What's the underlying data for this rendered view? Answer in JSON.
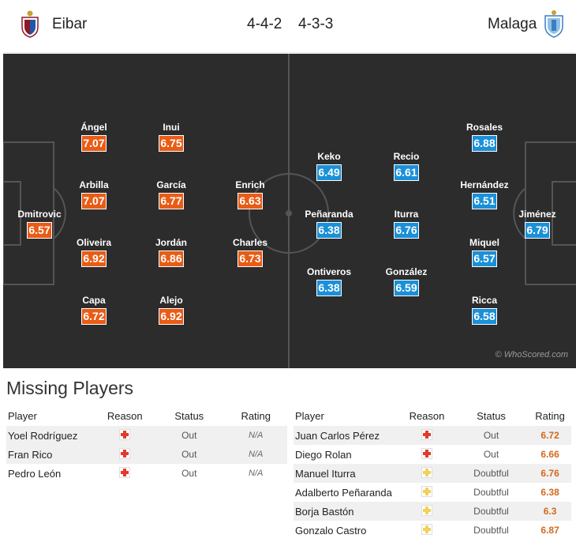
{
  "header": {
    "home_team": "Eibar",
    "home_formation": "4-4-2",
    "away_formation": "4-3-3",
    "away_team": "Malaga"
  },
  "pitch": {
    "watermark": "© WhoScored.com",
    "home_players": [
      {
        "name": "Dmitrovic",
        "rating": "6.57"
      },
      {
        "name": "Ángel",
        "rating": "7.07"
      },
      {
        "name": "Arbilla",
        "rating": "7.07"
      },
      {
        "name": "Oliveira",
        "rating": "6.92"
      },
      {
        "name": "Capa",
        "rating": "6.72"
      },
      {
        "name": "Inui",
        "rating": "6.75"
      },
      {
        "name": "García",
        "rating": "6.77"
      },
      {
        "name": "Jordán",
        "rating": "6.86"
      },
      {
        "name": "Alejo",
        "rating": "6.92"
      },
      {
        "name": "Enrich",
        "rating": "6.63"
      },
      {
        "name": "Charles",
        "rating": "6.73"
      }
    ],
    "away_players": [
      {
        "name": "Keko",
        "rating": "6.49"
      },
      {
        "name": "Peñaranda",
        "rating": "6.38"
      },
      {
        "name": "Ontiveros",
        "rating": "6.38"
      },
      {
        "name": "Recio",
        "rating": "6.61"
      },
      {
        "name": "Iturra",
        "rating": "6.76"
      },
      {
        "name": "González",
        "rating": "6.59"
      },
      {
        "name": "Rosales",
        "rating": "6.88"
      },
      {
        "name": "Hernández",
        "rating": "6.51"
      },
      {
        "name": "Miquel",
        "rating": "6.57"
      },
      {
        "name": "Ricca",
        "rating": "6.58"
      },
      {
        "name": "Jiménez",
        "rating": "6.79"
      }
    ]
  },
  "missing": {
    "title": "Missing Players",
    "columns": {
      "player": "Player",
      "reason": "Reason",
      "status": "Status",
      "rating": "Rating"
    },
    "home": [
      {
        "player": "Yoel Rodríguez",
        "reason_icon": "injury-icon",
        "status": "Out",
        "rating": "N/A"
      },
      {
        "player": "Fran Rico",
        "reason_icon": "injury-icon",
        "status": "Out",
        "rating": "N/A"
      },
      {
        "player": "Pedro León",
        "reason_icon": "injury-icon",
        "status": "Out",
        "rating": "N/A"
      }
    ],
    "away": [
      {
        "player": "Juan Carlos Pérez",
        "reason_icon": "injury-icon",
        "status": "Out",
        "rating": "6.72"
      },
      {
        "player": "Diego Rolan",
        "reason_icon": "injury-icon",
        "status": "Out",
        "rating": "6.66"
      },
      {
        "player": "Manuel Iturra",
        "reason_icon": "doubtful-icon",
        "status": "Doubtful",
        "rating": "6.76"
      },
      {
        "player": "Adalberto Peñaranda",
        "reason_icon": "doubtful-icon",
        "status": "Doubtful",
        "rating": "6.38"
      },
      {
        "player": "Borja Bastón",
        "reason_icon": "doubtful-icon",
        "status": "Doubtful",
        "rating": "6.3"
      },
      {
        "player": "Gonzalo Castro",
        "reason_icon": "doubtful-icon",
        "status": "Doubtful",
        "rating": "6.87"
      }
    ]
  },
  "colors": {
    "home_rating": "#e95c16",
    "away_rating": "#1a90d8",
    "pitch": "#2c2c2c"
  }
}
